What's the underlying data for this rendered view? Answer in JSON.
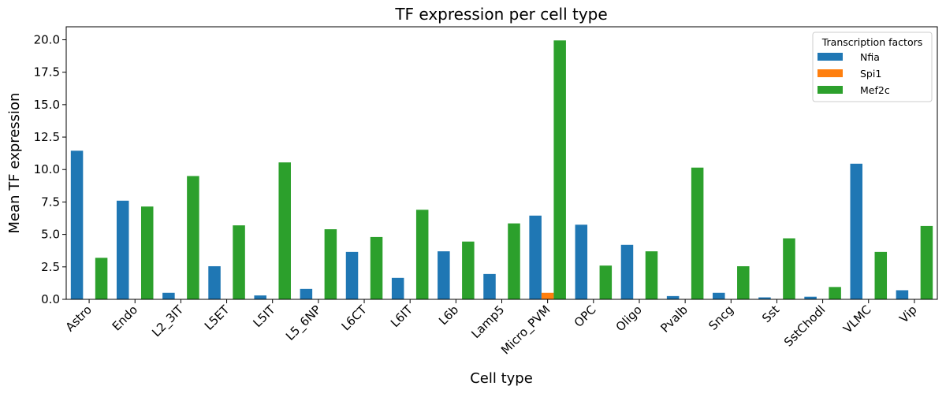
{
  "chart_data": {
    "type": "bar",
    "title": "TF expression per cell type",
    "xlabel": "Cell type",
    "ylabel": "Mean TF expression",
    "ylim": [
      0,
      21
    ],
    "yticks": [
      0.0,
      2.5,
      5.0,
      7.5,
      10.0,
      12.5,
      15.0,
      17.5,
      20.0
    ],
    "ytick_labels": [
      "0.0",
      "2.5",
      "5.0",
      "7.5",
      "10.0",
      "12.5",
      "15.0",
      "17.5",
      "20.0"
    ],
    "grid": false,
    "legend": {
      "title": "Transcription factors",
      "placement": "top-right"
    },
    "categories": [
      "Astro",
      "Endo",
      "L2_3IT",
      "L5ET",
      "L5IT",
      "L5_6NP",
      "L6CT",
      "L6IT",
      "L6b",
      "Lamp5",
      "Micro_PVM",
      "OPC",
      "Oligo",
      "Pvalb",
      "Sncg",
      "Sst",
      "SstChodl",
      "VLMC",
      "Vip"
    ],
    "series": [
      {
        "name": "Nfia",
        "color": "#1f77b4",
        "values": [
          11.45,
          7.6,
          0.5,
          2.55,
          0.3,
          0.8,
          3.65,
          1.65,
          3.7,
          1.95,
          6.45,
          5.75,
          4.2,
          0.25,
          0.5,
          0.15,
          0.2,
          10.45,
          0.7
        ]
      },
      {
        "name": "Spi1",
        "color": "#ff7f0e",
        "values": [
          0.0,
          0.0,
          0.0,
          0.0,
          0.0,
          0.0,
          0.0,
          0.0,
          0.0,
          0.0,
          0.5,
          0.0,
          0.0,
          0.0,
          0.0,
          0.0,
          0.0,
          0.0,
          0.0
        ]
      },
      {
        "name": "Mef2c",
        "color": "#2ca02c",
        "values": [
          3.2,
          7.15,
          9.5,
          5.7,
          10.55,
          5.4,
          4.8,
          6.9,
          4.45,
          5.85,
          19.95,
          2.6,
          3.7,
          10.15,
          2.55,
          4.7,
          0.95,
          3.65,
          5.65
        ]
      }
    ]
  }
}
